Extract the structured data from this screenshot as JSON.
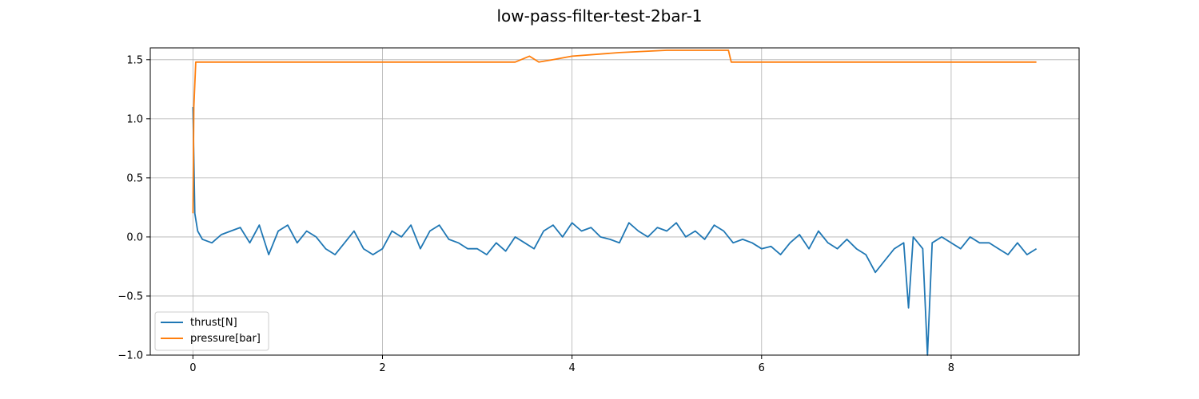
{
  "chart_data": {
    "type": "line",
    "title": "low-pass-filter-test-2bar-1",
    "xlabel": "",
    "ylabel": "",
    "xlim": [
      -0.45,
      9.35
    ],
    "ylim": [
      -1.0,
      1.6
    ],
    "xticks": [
      0,
      2,
      4,
      6,
      8
    ],
    "xtick_labels": [
      "0",
      "2",
      "4",
      "6",
      "8"
    ],
    "yticks": [
      -1.0,
      -0.5,
      0.0,
      0.5,
      1.0,
      1.5
    ],
    "ytick_labels": [
      "−1.0",
      "−0.5",
      "0.0",
      "0.5",
      "1.0",
      "1.5"
    ],
    "grid": true,
    "legend_position": "lower-left",
    "series": [
      {
        "name": "thrust[N]",
        "color": "#1f77b4",
        "x": [
          0.0,
          0.02,
          0.05,
          0.1,
          0.2,
          0.3,
          0.4,
          0.5,
          0.6,
          0.7,
          0.8,
          0.9,
          1.0,
          1.1,
          1.2,
          1.3,
          1.4,
          1.5,
          1.6,
          1.7,
          1.8,
          1.9,
          2.0,
          2.1,
          2.2,
          2.3,
          2.4,
          2.5,
          2.6,
          2.7,
          2.8,
          2.9,
          3.0,
          3.1,
          3.2,
          3.3,
          3.4,
          3.5,
          3.6,
          3.7,
          3.8,
          3.9,
          4.0,
          4.1,
          4.2,
          4.3,
          4.4,
          4.5,
          4.6,
          4.7,
          4.8,
          4.9,
          5.0,
          5.1,
          5.2,
          5.3,
          5.4,
          5.5,
          5.6,
          5.7,
          5.8,
          5.9,
          6.0,
          6.1,
          6.2,
          6.3,
          6.4,
          6.5,
          6.6,
          6.7,
          6.8,
          6.9,
          7.0,
          7.1,
          7.2,
          7.3,
          7.4,
          7.5,
          7.55,
          7.6,
          7.7,
          7.75,
          7.8,
          7.9,
          8.0,
          8.1,
          8.2,
          8.3,
          8.4,
          8.5,
          8.6,
          8.7,
          8.8,
          8.9
        ],
        "y": [
          1.1,
          0.2,
          0.05,
          -0.02,
          -0.05,
          0.02,
          0.05,
          0.08,
          -0.05,
          0.1,
          -0.15,
          0.05,
          0.1,
          -0.05,
          0.05,
          0.0,
          -0.1,
          -0.15,
          -0.05,
          0.05,
          -0.1,
          -0.15,
          -0.1,
          0.05,
          0.0,
          0.1,
          -0.1,
          0.05,
          0.1,
          -0.02,
          -0.05,
          -0.1,
          -0.1,
          -0.15,
          -0.05,
          -0.12,
          0.0,
          -0.05,
          -0.1,
          0.05,
          0.1,
          0.0,
          0.12,
          0.05,
          0.08,
          0.0,
          -0.02,
          -0.05,
          0.12,
          0.05,
          0.0,
          0.08,
          0.05,
          0.12,
          0.0,
          0.05,
          -0.02,
          0.1,
          0.05,
          -0.05,
          -0.02,
          -0.05,
          -0.1,
          -0.08,
          -0.15,
          -0.05,
          0.02,
          -0.1,
          0.05,
          -0.05,
          -0.1,
          -0.02,
          -0.1,
          -0.15,
          -0.3,
          -0.2,
          -0.1,
          -0.05,
          -0.6,
          0.0,
          -0.1,
          -1.0,
          -0.05,
          0.0,
          -0.05,
          -0.1,
          0.0,
          -0.05,
          -0.05,
          -0.1,
          -0.15,
          -0.05,
          -0.15,
          -0.1
        ]
      },
      {
        "name": "pressure[bar]",
        "color": "#ff7f0e",
        "x": [
          0.0,
          0.01,
          0.03,
          0.1,
          1.0,
          2.0,
          3.0,
          3.4,
          3.55,
          3.65,
          3.8,
          4.0,
          4.5,
          5.0,
          5.5,
          5.65,
          5.68,
          5.75,
          6.0,
          7.0,
          8.0,
          8.9
        ],
        "y": [
          0.2,
          1.1,
          1.48,
          1.48,
          1.48,
          1.48,
          1.48,
          1.48,
          1.53,
          1.48,
          1.5,
          1.53,
          1.56,
          1.58,
          1.58,
          1.58,
          1.48,
          1.48,
          1.48,
          1.48,
          1.48,
          1.48
        ]
      }
    ]
  }
}
